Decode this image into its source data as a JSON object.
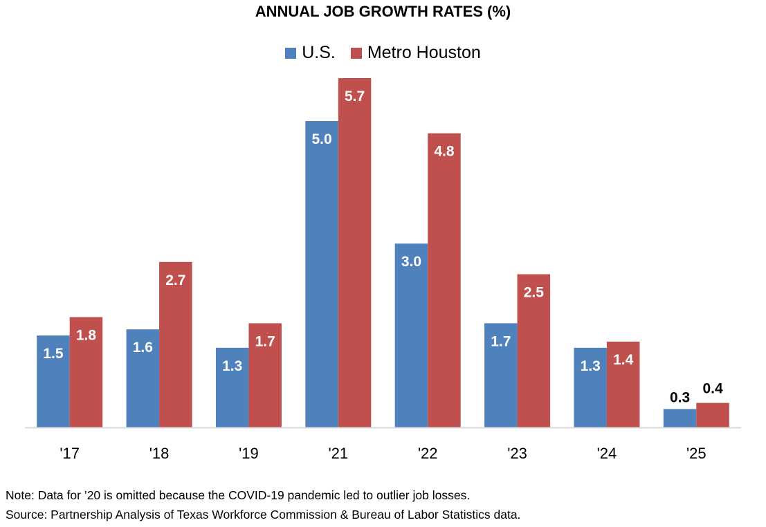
{
  "chart_data": {
    "type": "bar",
    "title": "ANNUAL JOB GROWTH RATES (%)",
    "xlabel": "",
    "ylabel": "",
    "categories": [
      "'17",
      "'18",
      "'19",
      "'21",
      "'22",
      "'23",
      "'24",
      "'25"
    ],
    "series": [
      {
        "name": "U.S.",
        "color": "#4F81BD",
        "values": [
          1.5,
          1.6,
          1.3,
          5.0,
          3.0,
          1.7,
          1.3,
          0.3
        ]
      },
      {
        "name": "Metro Houston",
        "color": "#C0504D",
        "values": [
          1.8,
          2.7,
          1.7,
          5.7,
          4.8,
          2.5,
          1.4,
          0.4
        ]
      }
    ],
    "data_labels": {
      "U.S.": [
        "1.5",
        "1.6",
        "1.3",
        "5.0",
        "3.0",
        "1.7",
        "1.3",
        "0.3"
      ],
      "Metro Houston": [
        "1.8",
        "2.7",
        "1.7",
        "5.7",
        "4.8",
        "2.5",
        "1.4",
        "0.4"
      ]
    },
    "ylim": [
      0,
      6.3
    ],
    "grid": false,
    "y_axis_visible": false,
    "legend_position": "top-center"
  },
  "footnotes": {
    "note": "Note: Data for ’20 is omitted because the COVID-19 pandemic led to outlier job losses.",
    "source": "Source: Partnership Analysis of Texas Workforce Commission & Bureau of Labor Statistics data."
  }
}
